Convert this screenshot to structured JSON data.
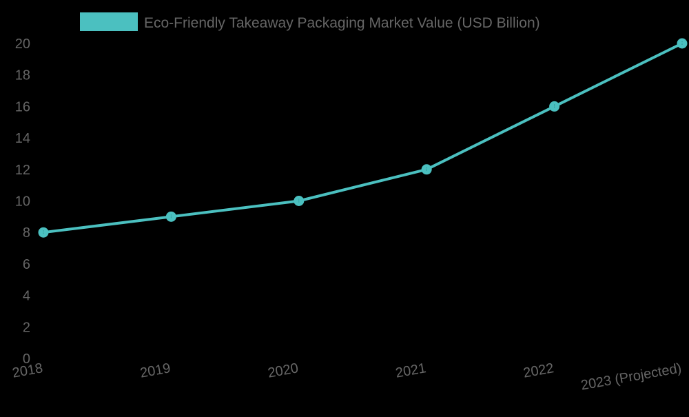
{
  "chart_data": {
    "type": "line",
    "title": "",
    "xlabel": "",
    "ylabel": "",
    "categories": [
      "2018",
      "2019",
      "2020",
      "2021",
      "2022",
      "2023 (Projected)"
    ],
    "series": [
      {
        "name": "Eco-Friendly Takeaway Packaging Market Value (USD Billion)",
        "values": [
          8,
          9,
          10,
          12,
          16,
          20
        ],
        "color": "#4bc0c0"
      }
    ],
    "ylim": [
      0,
      20
    ],
    "yticks": [
      0,
      2,
      4,
      6,
      8,
      10,
      12,
      14,
      16,
      18,
      20
    ],
    "grid": false,
    "legend_position": "top",
    "x_tick_rotation": -10
  },
  "legend": {
    "label": "Eco-Friendly Takeaway Packaging Market Value (USD Billion)",
    "swatch_color": "#4bc0c0"
  },
  "colors": {
    "background": "#000000",
    "tick_text": "#666666",
    "line": "#4bc0c0"
  }
}
